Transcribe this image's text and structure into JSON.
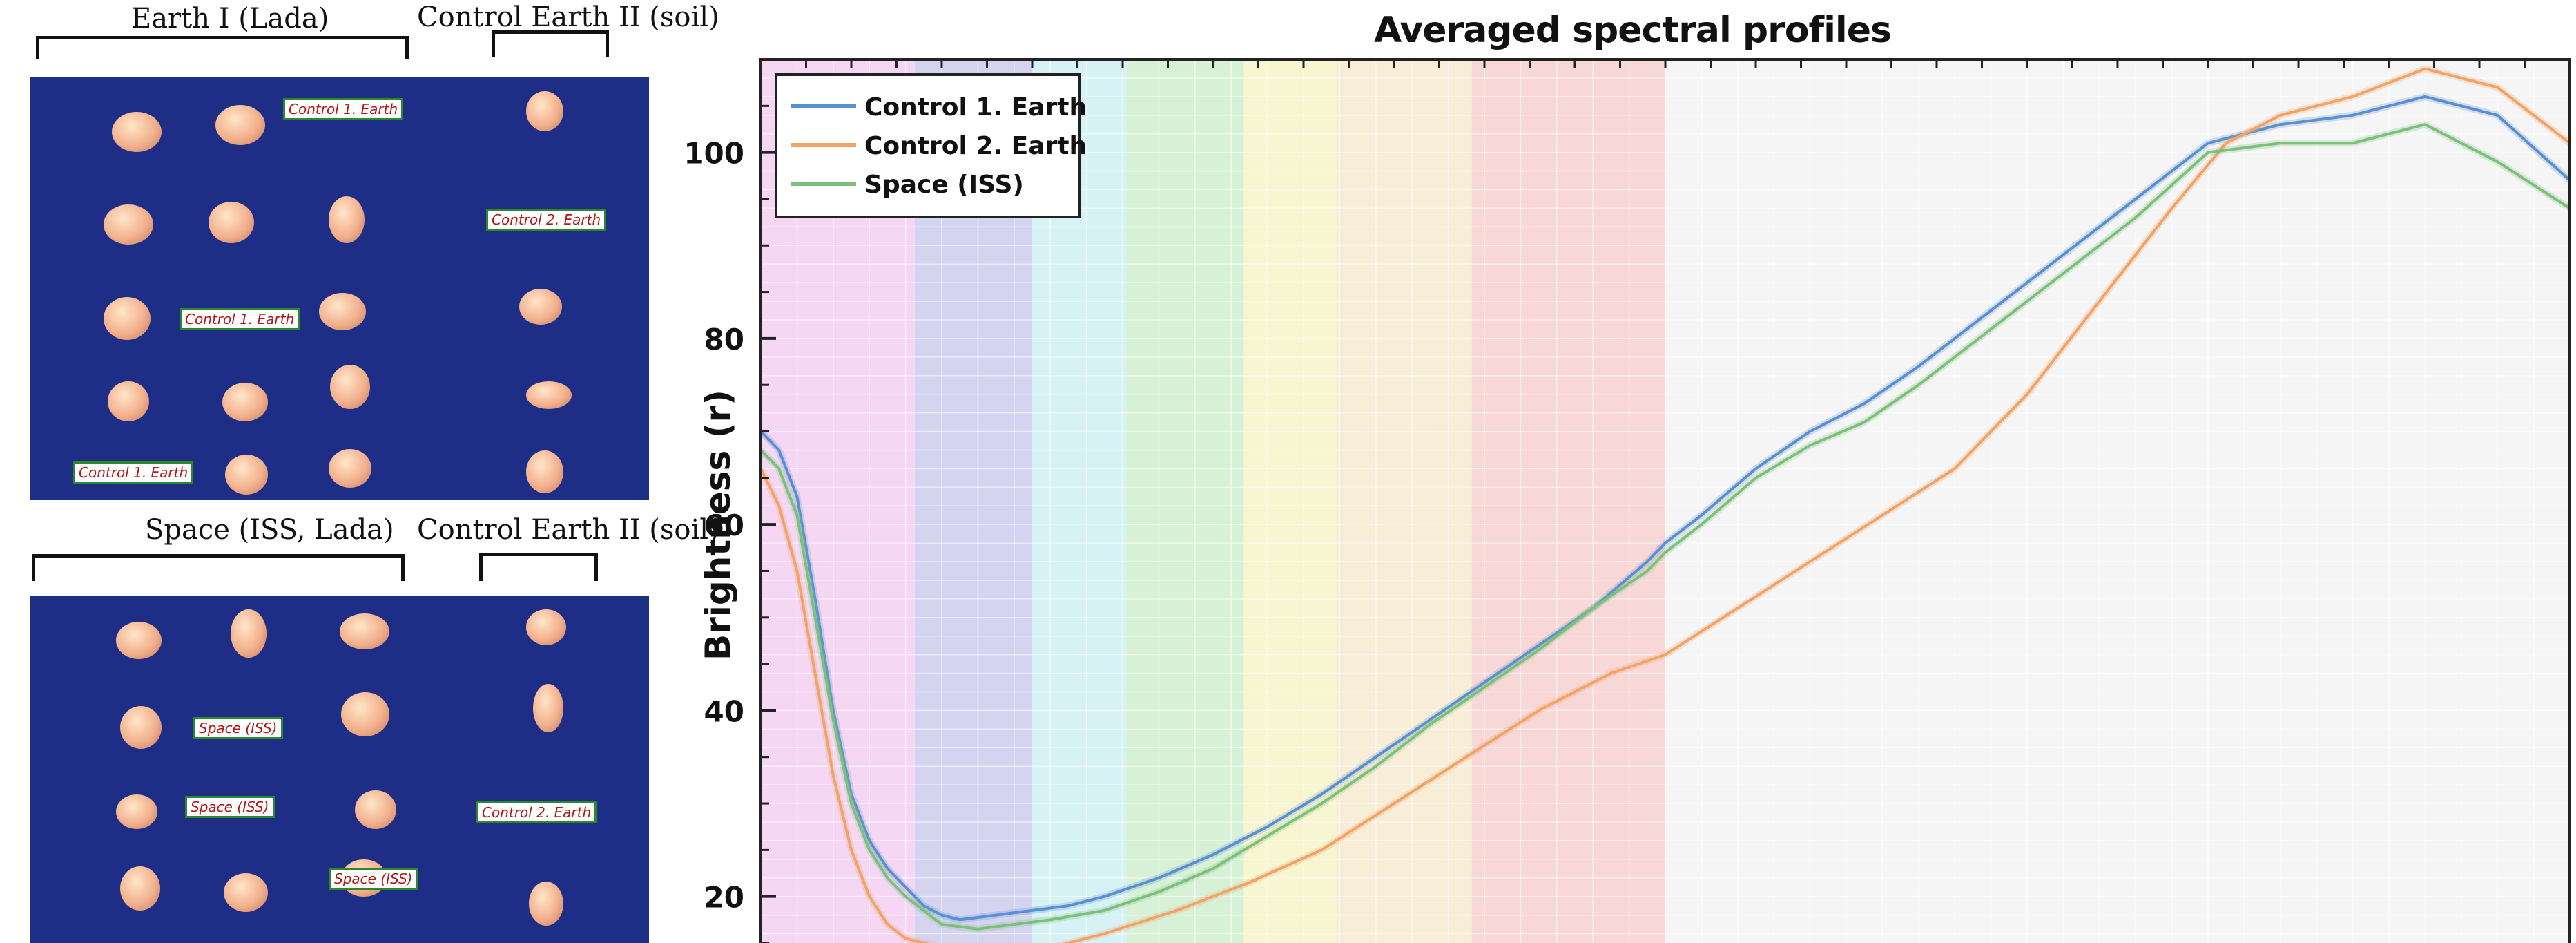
{
  "photo_panels": [
    {
      "group_label": "Earth I  (Lada)",
      "control_label": "Control Earth II (soil)",
      "tags": [
        "Control 1. Earth",
        "Control 2. Earth",
        "Control 1. Earth",
        "Control 1. Earth"
      ]
    },
    {
      "group_label": "Space (ISS, Lada)",
      "control_label": "Control Earth II (soil)",
      "tags": [
        "Space (ISS)",
        "Space (ISS)",
        "Space (ISS)",
        "Control 2. Earth"
      ]
    }
  ],
  "colors": {
    "photo_bg": "#1e2e86",
    "tag_text": "#b01818",
    "tag_border": "#2a8a2a"
  },
  "chart_data": {
    "type": "line",
    "title": "Averaged spectral profiles",
    "xlabel": "",
    "ylabel": "Brightness (r)",
    "ylim": [
      15,
      110
    ],
    "xlim": [
      0,
      1000
    ],
    "yticks": [
      20,
      40,
      60,
      80,
      100
    ],
    "grid": true,
    "legend_position": "top-left",
    "background_bands": [
      {
        "from": 0,
        "to": 85,
        "color": "#f2cdf0"
      },
      {
        "from": 85,
        "to": 150,
        "color": "#c9c9ee"
      },
      {
        "from": 150,
        "to": 202,
        "color": "#cdeff2"
      },
      {
        "from": 202,
        "to": 267,
        "color": "#cdeecd"
      },
      {
        "from": 267,
        "to": 318,
        "color": "#f6f3c6"
      },
      {
        "from": 318,
        "to": 393,
        "color": "#f6e8cd"
      },
      {
        "from": 393,
        "to": 500,
        "color": "#f6cdcd"
      },
      {
        "from": 500,
        "to": 1000,
        "color": "#f2f2f2"
      }
    ],
    "series": [
      {
        "name": "Control 1. Earth",
        "color": "#5a8fd0",
        "points": [
          [
            0,
            70
          ],
          [
            10,
            68
          ],
          [
            20,
            63
          ],
          [
            30,
            52
          ],
          [
            40,
            40
          ],
          [
            50,
            31
          ],
          [
            60,
            26
          ],
          [
            70,
            23
          ],
          [
            80,
            21
          ],
          [
            90,
            19
          ],
          [
            100,
            18
          ],
          [
            110,
            17.5
          ],
          [
            130,
            18
          ],
          [
            150,
            18.5
          ],
          [
            170,
            19
          ],
          [
            190,
            20
          ],
          [
            220,
            22
          ],
          [
            250,
            24.5
          ],
          [
            280,
            27.5
          ],
          [
            310,
            31
          ],
          [
            340,
            35
          ],
          [
            370,
            39
          ],
          [
            400,
            43
          ],
          [
            430,
            47
          ],
          [
            460,
            51
          ],
          [
            490,
            56
          ],
          [
            500,
            58
          ],
          [
            520,
            61
          ],
          [
            550,
            66
          ],
          [
            580,
            70
          ],
          [
            610,
            73
          ],
          [
            640,
            77
          ],
          [
            680,
            83
          ],
          [
            720,
            89
          ],
          [
            760,
            95
          ],
          [
            800,
            101
          ],
          [
            840,
            103
          ],
          [
            880,
            104
          ],
          [
            920,
            106
          ],
          [
            960,
            104
          ],
          [
            1000,
            97
          ]
        ]
      },
      {
        "name": "Control 2. Earth",
        "color": "#f0a468",
        "points": [
          [
            0,
            66
          ],
          [
            10,
            62
          ],
          [
            20,
            55
          ],
          [
            30,
            44
          ],
          [
            40,
            33
          ],
          [
            50,
            25
          ],
          [
            60,
            20
          ],
          [
            70,
            17
          ],
          [
            80,
            15.5
          ],
          [
            100,
            14.5
          ],
          [
            130,
            14
          ],
          [
            160,
            14.5
          ],
          [
            190,
            16
          ],
          [
            230,
            18.5
          ],
          [
            270,
            21.5
          ],
          [
            310,
            25
          ],
          [
            350,
            30
          ],
          [
            390,
            35
          ],
          [
            430,
            40
          ],
          [
            470,
            44
          ],
          [
            500,
            46
          ],
          [
            540,
            51
          ],
          [
            580,
            56
          ],
          [
            620,
            61
          ],
          [
            660,
            66
          ],
          [
            700,
            74
          ],
          [
            740,
            84
          ],
          [
            780,
            94
          ],
          [
            810,
            101
          ],
          [
            840,
            104
          ],
          [
            880,
            106
          ],
          [
            920,
            109
          ],
          [
            960,
            107
          ],
          [
            1000,
            101
          ]
        ]
      },
      {
        "name": "Space (ISS)",
        "color": "#7cc07c",
        "points": [
          [
            0,
            68
          ],
          [
            10,
            66
          ],
          [
            20,
            61
          ],
          [
            30,
            50
          ],
          [
            40,
            39
          ],
          [
            50,
            30
          ],
          [
            60,
            25
          ],
          [
            70,
            22
          ],
          [
            80,
            20
          ],
          [
            90,
            18.5
          ],
          [
            100,
            17
          ],
          [
            120,
            16.5
          ],
          [
            140,
            17
          ],
          [
            160,
            17.5
          ],
          [
            190,
            18.5
          ],
          [
            220,
            20.5
          ],
          [
            250,
            23
          ],
          [
            280,
            26.5
          ],
          [
            310,
            30
          ],
          [
            340,
            34
          ],
          [
            370,
            38.5
          ],
          [
            400,
            42.5
          ],
          [
            430,
            46.5
          ],
          [
            460,
            51
          ],
          [
            490,
            55
          ],
          [
            500,
            57
          ],
          [
            520,
            60
          ],
          [
            550,
            65
          ],
          [
            580,
            68.5
          ],
          [
            610,
            71
          ],
          [
            640,
            75
          ],
          [
            680,
            81
          ],
          [
            720,
            87
          ],
          [
            760,
            93
          ],
          [
            800,
            100
          ],
          [
            840,
            101
          ],
          [
            880,
            101
          ],
          [
            920,
            103
          ],
          [
            960,
            99
          ],
          [
            1000,
            94
          ]
        ]
      }
    ]
  }
}
